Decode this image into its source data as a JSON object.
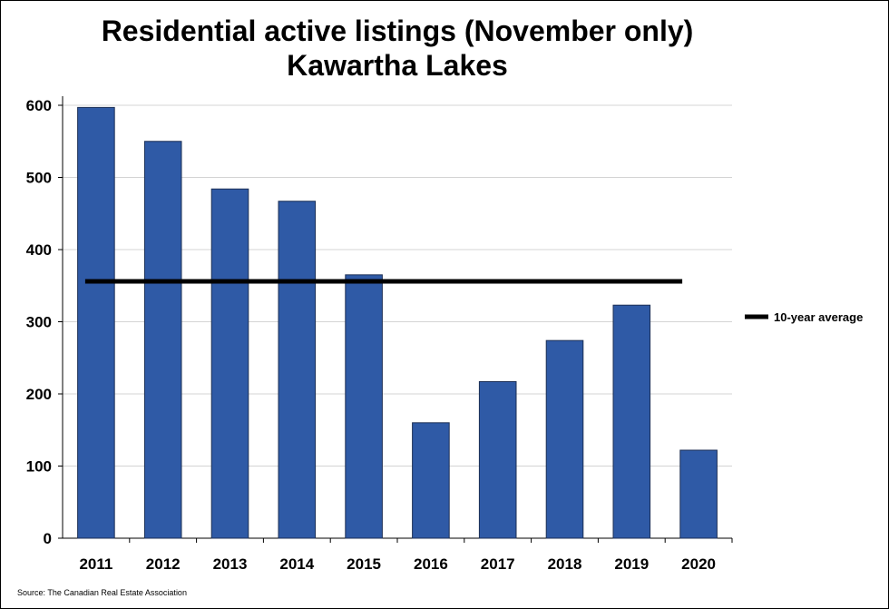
{
  "chart_data": {
    "type": "bar",
    "title": "Residential active listings (November only)",
    "subtitle": "Kawartha Lakes",
    "xlabel": "",
    "ylabel": "",
    "categories": [
      "2011",
      "2012",
      "2013",
      "2014",
      "2015",
      "2016",
      "2017",
      "2018",
      "2019",
      "2020"
    ],
    "series": [
      {
        "name": "",
        "values": [
          597,
          550,
          484,
          467,
          365,
          160,
          217,
          274,
          323,
          122
        ],
        "color": "#2f5aa6"
      }
    ],
    "reference_line": {
      "name": "10-year average",
      "value": 356,
      "color": "#000000"
    },
    "ylim": [
      0,
      600
    ],
    "yticks": [
      0,
      100,
      200,
      300,
      400,
      500,
      600
    ],
    "grid": true,
    "legend_position": "right"
  },
  "source": "Source: The Canadian Real Estate Association"
}
